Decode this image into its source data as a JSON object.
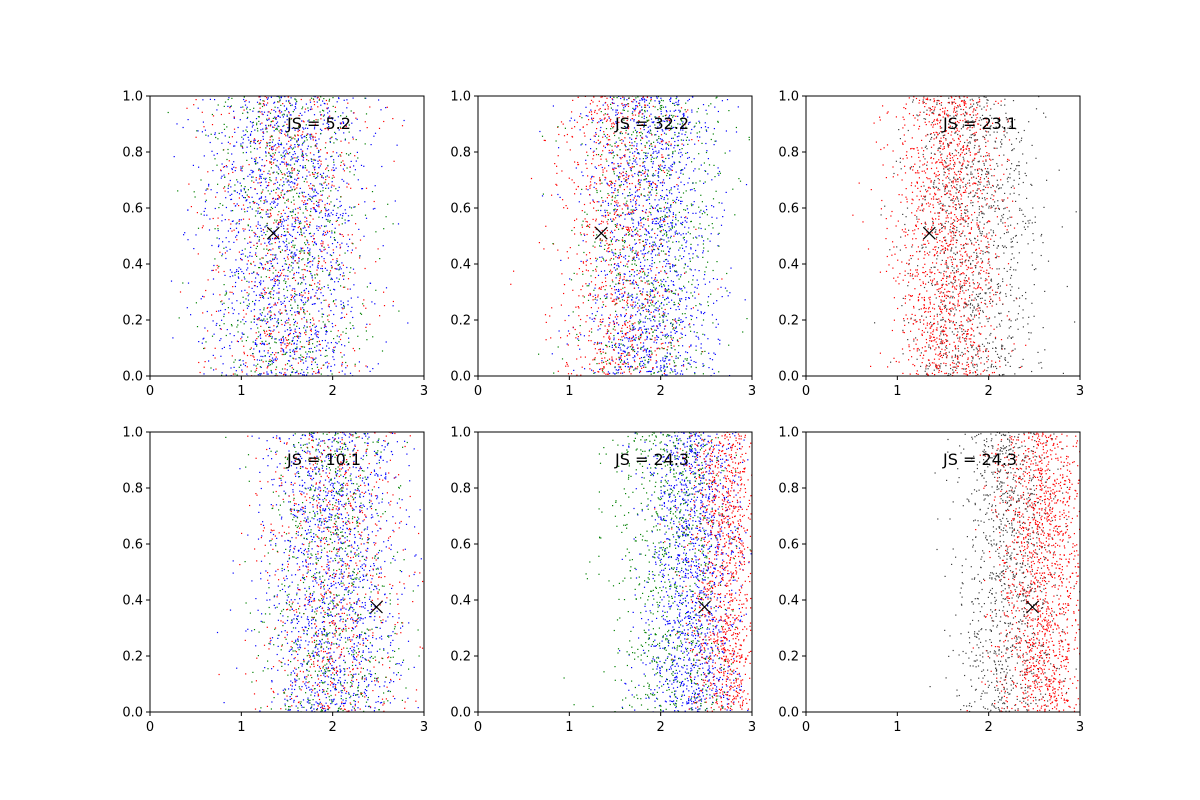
{
  "chart_data": [
    {
      "type": "scatter",
      "annotation": "JS = 5.2",
      "xlim": [
        0,
        3
      ],
      "ylim": [
        0,
        1
      ],
      "xticks": [
        "0",
        "1",
        "2",
        "3"
      ],
      "yticks": [
        "0.0",
        "0.2",
        "0.4",
        "0.6",
        "0.8",
        "1.0"
      ],
      "marker": {
        "x": 1.35,
        "y": 0.51,
        "symbol": "x",
        "color": "#000000"
      },
      "series": [
        {
          "color": "#0000ff",
          "count": 1500,
          "x_center": 1.5,
          "x_spread": 0.8
        },
        {
          "color": "#ff0000",
          "count": 750,
          "x_center": 1.5,
          "x_spread": 0.8
        },
        {
          "color": "#008000",
          "count": 750,
          "x_center": 1.5,
          "x_spread": 0.8
        }
      ]
    },
    {
      "type": "scatter",
      "annotation": "JS = 32.2",
      "xlim": [
        0,
        3
      ],
      "ylim": [
        0,
        1
      ],
      "xticks": [
        "0",
        "1",
        "2",
        "3"
      ],
      "yticks": [
        "0.0",
        "0.2",
        "0.4",
        "0.6",
        "0.8",
        "1.0"
      ],
      "marker": {
        "x": 1.35,
        "y": 0.51,
        "symbol": "x",
        "color": "#000000"
      },
      "series": [
        {
          "color": "#0000ff",
          "count": 1400,
          "x_center": 1.9,
          "x_spread": 0.65
        },
        {
          "color": "#ff0000",
          "count": 900,
          "x_center": 1.55,
          "x_spread": 0.6
        },
        {
          "color": "#008000",
          "count": 800,
          "x_center": 1.9,
          "x_spread": 0.7
        }
      ]
    },
    {
      "type": "scatter",
      "annotation": "JS = 23.1",
      "xlim": [
        0,
        3
      ],
      "ylim": [
        0,
        1
      ],
      "xticks": [
        "0",
        "1",
        "2",
        "3"
      ],
      "yticks": [
        "0.0",
        "0.2",
        "0.4",
        "0.6",
        "0.8",
        "1.0"
      ],
      "marker": {
        "x": 1.35,
        "y": 0.51,
        "symbol": "x",
        "color": "#000000"
      },
      "series": [
        {
          "color": "#ff0000",
          "count": 1500,
          "x_center": 1.55,
          "x_spread": 0.55
        },
        {
          "color": "#404040",
          "count": 1100,
          "x_center": 1.85,
          "x_spread": 0.65
        }
      ]
    },
    {
      "type": "scatter",
      "annotation": "JS = 10.1",
      "xlim": [
        0,
        3
      ],
      "ylim": [
        0,
        1
      ],
      "xticks": [
        "0",
        "1",
        "2",
        "3"
      ],
      "yticks": [
        "0.0",
        "0.2",
        "0.4",
        "0.6",
        "0.8",
        "1.0"
      ],
      "marker": {
        "x": 2.48,
        "y": 0.375,
        "symbol": "x",
        "color": "#000000"
      },
      "series": [
        {
          "color": "#0000ff",
          "count": 1400,
          "x_center": 2.0,
          "x_spread": 0.7
        },
        {
          "color": "#ff0000",
          "count": 750,
          "x_center": 2.0,
          "x_spread": 0.7
        },
        {
          "color": "#008000",
          "count": 750,
          "x_center": 2.0,
          "x_spread": 0.7
        }
      ]
    },
    {
      "type": "scatter",
      "annotation": "JS = 24.3",
      "xlim": [
        0,
        3
      ],
      "ylim": [
        0,
        1
      ],
      "xticks": [
        "0",
        "1",
        "2",
        "3"
      ],
      "yticks": [
        "0.0",
        "0.2",
        "0.4",
        "0.6",
        "0.8",
        "1.0"
      ],
      "marker": {
        "x": 2.48,
        "y": 0.375,
        "symbol": "x",
        "color": "#000000"
      },
      "series": [
        {
          "color": "#0000ff",
          "count": 1400,
          "x_center": 2.35,
          "x_spread": 0.5
        },
        {
          "color": "#ff0000",
          "count": 1100,
          "x_center": 2.7,
          "x_spread": 0.35
        },
        {
          "color": "#008000",
          "count": 800,
          "x_center": 2.1,
          "x_spread": 0.6
        }
      ]
    },
    {
      "type": "scatter",
      "annotation": "JS = 24.3",
      "xlim": [
        0,
        3
      ],
      "ylim": [
        0,
        1
      ],
      "xticks": [
        "0",
        "1",
        "2",
        "3"
      ],
      "yticks": [
        "0.0",
        "0.2",
        "0.4",
        "0.6",
        "0.8",
        "1.0"
      ],
      "marker": {
        "x": 2.48,
        "y": 0.375,
        "symbol": "x",
        "color": "#000000"
      },
      "series": [
        {
          "color": "#ff0000",
          "count": 1500,
          "x_center": 2.6,
          "x_spread": 0.45
        },
        {
          "color": "#404040",
          "count": 1000,
          "x_center": 2.2,
          "x_spread": 0.5
        }
      ]
    }
  ]
}
